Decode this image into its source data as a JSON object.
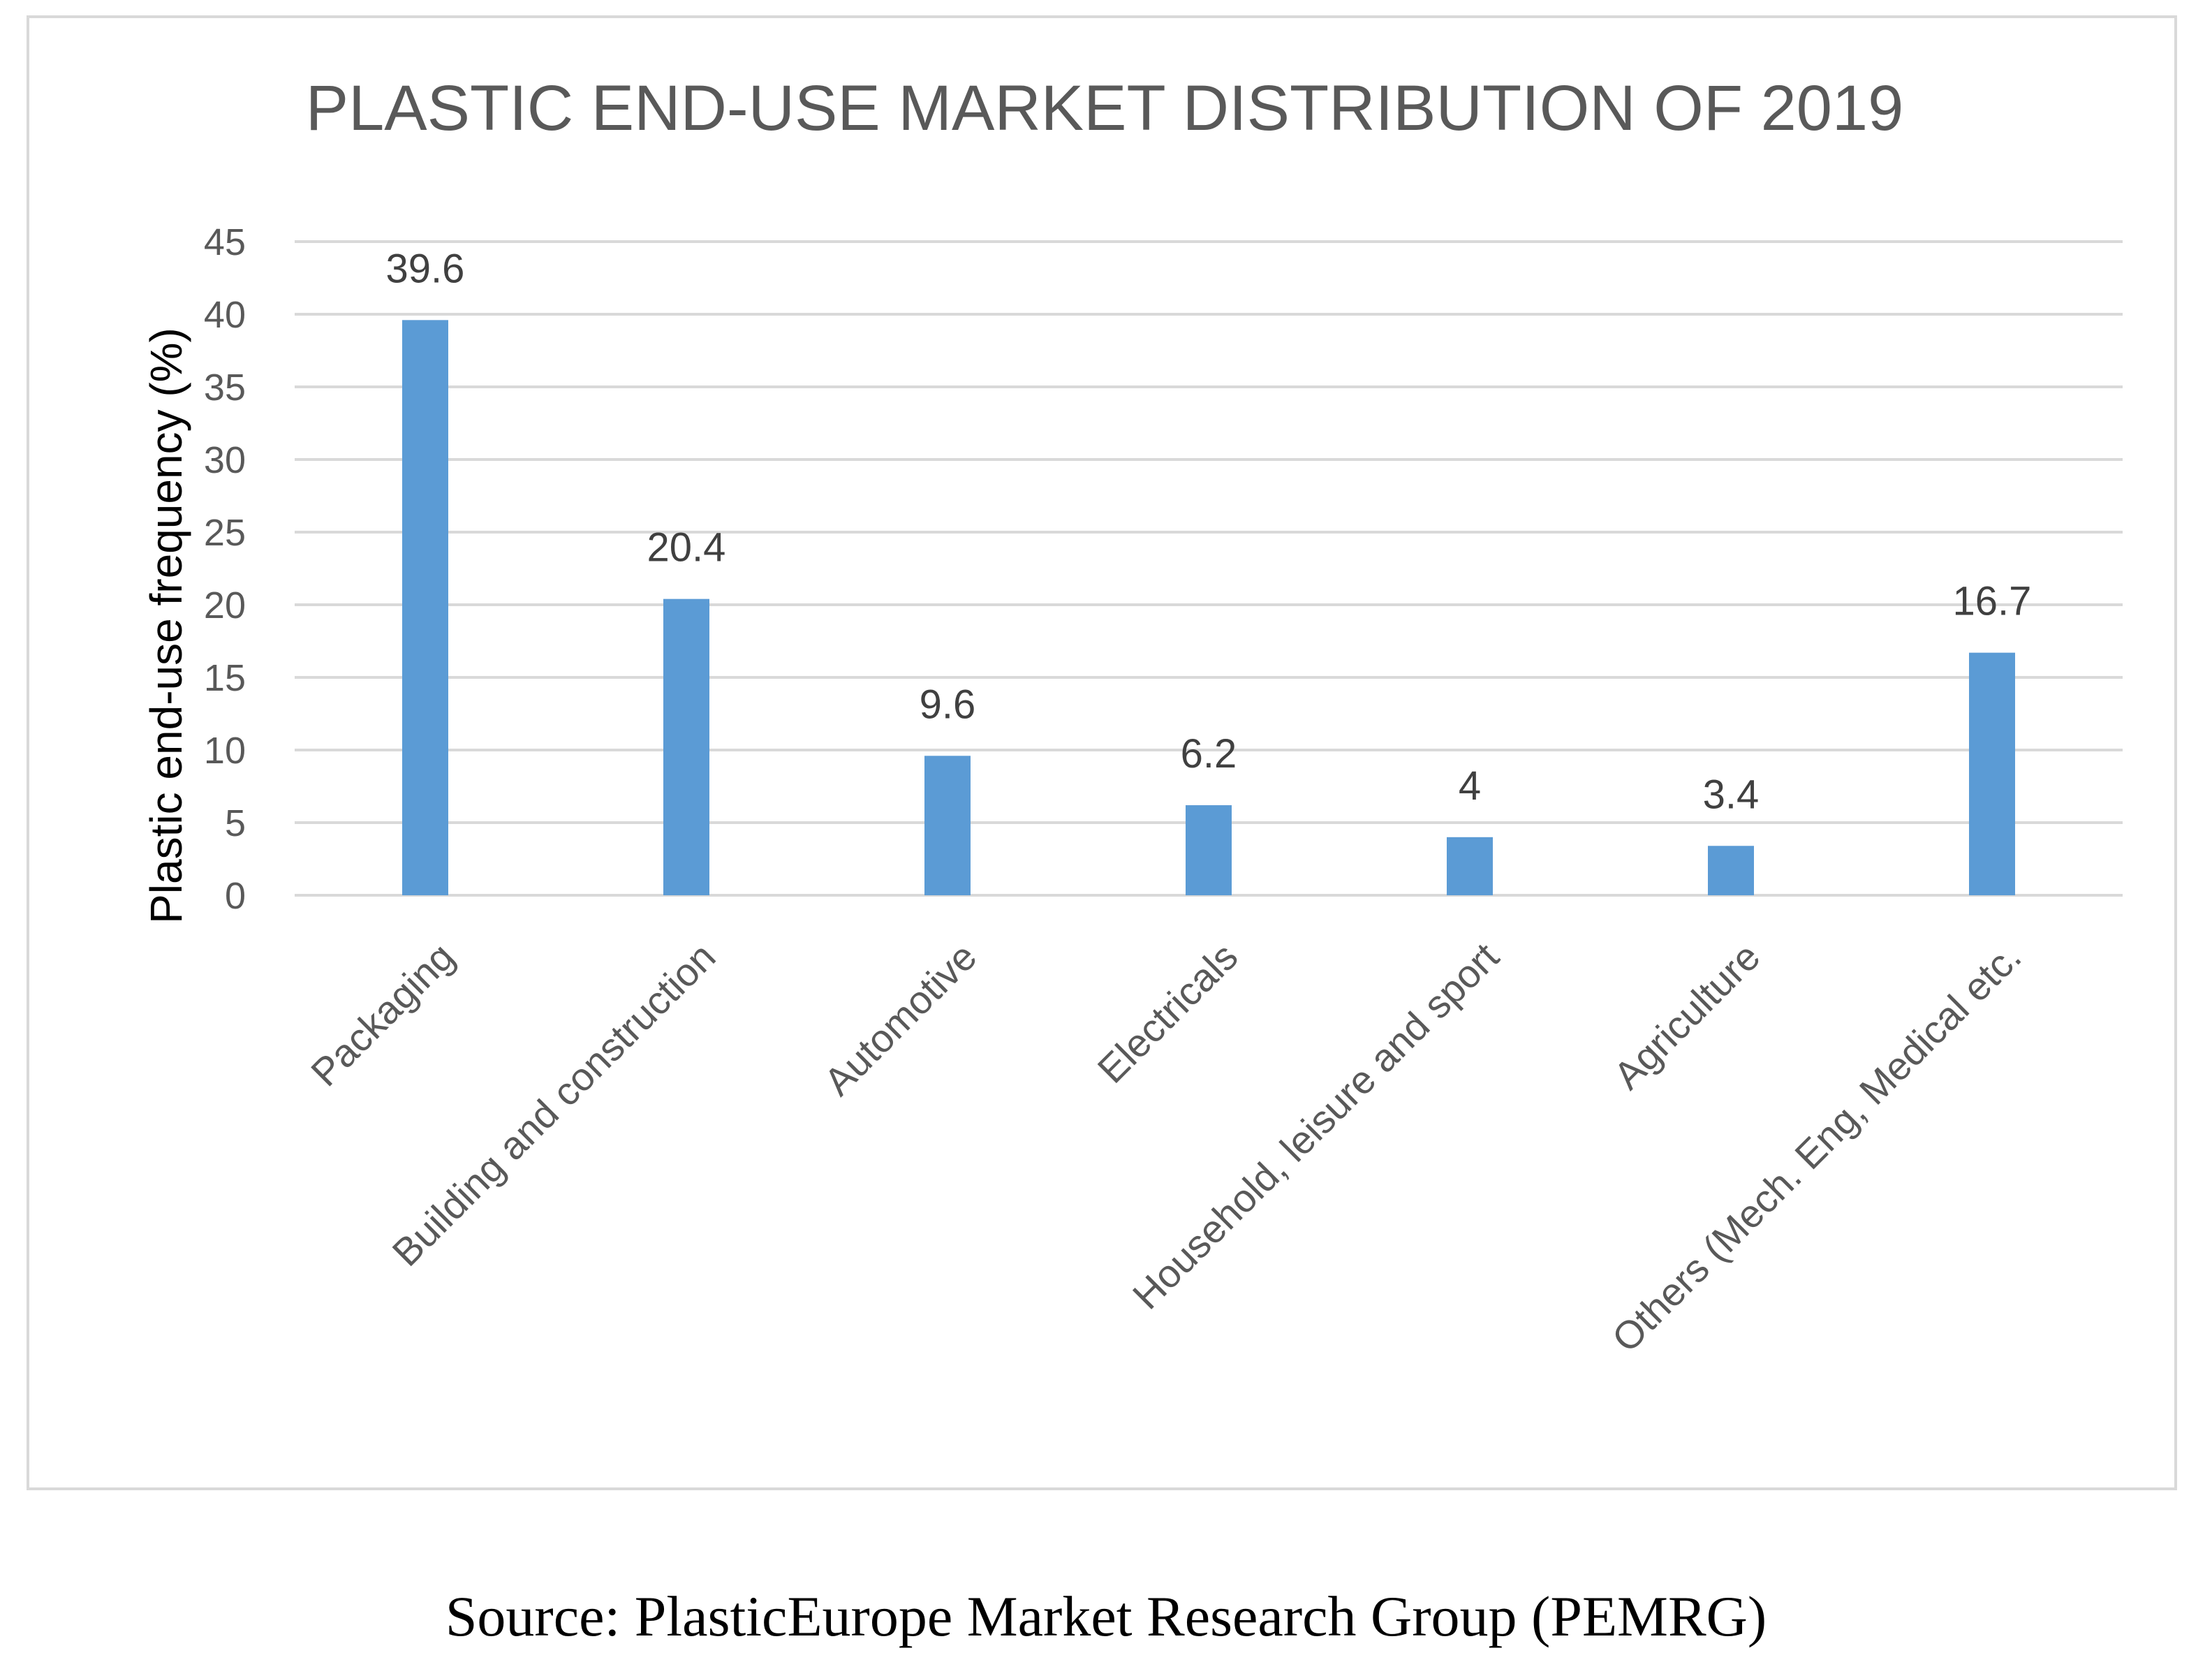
{
  "chart_data": {
    "type": "bar",
    "title": "PLASTIC END-USE MARKET DISTRIBUTION OF 2019",
    "xlabel": "",
    "ylabel": "Plastic end-use frequency (%)",
    "ylim": [
      0,
      45
    ],
    "yticks": [
      0,
      5,
      10,
      15,
      20,
      25,
      30,
      35,
      40,
      45
    ],
    "grid": true,
    "legend": "none",
    "categories": [
      "Packaging",
      "Building and construction",
      "Automotive",
      "Electricals",
      "Household, leisure and sport",
      "Agriculture",
      "Others (Mech. Eng, Medical etc."
    ],
    "values": [
      39.6,
      20.4,
      9.6,
      6.2,
      4,
      3.4,
      16.7
    ],
    "data_labels": [
      "39.6",
      "20.4",
      "9.6",
      "6.2",
      "4",
      "3.4",
      "16.7"
    ],
    "bar_color": "#5b9bd5",
    "grid_color": "#d9d9d9"
  },
  "source_note": "Source: PlasticEurope Market Research Group (PEMRG)"
}
